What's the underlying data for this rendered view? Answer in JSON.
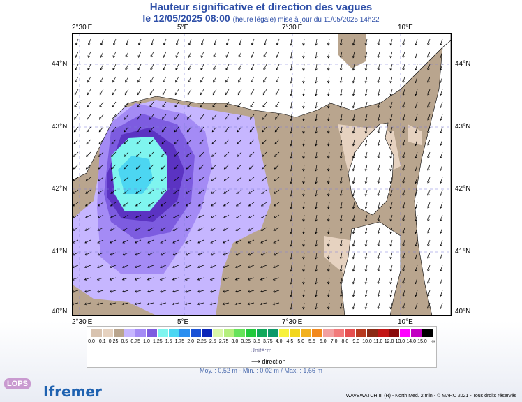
{
  "header": {
    "title": "Hauteur significative et direction des vagues",
    "subtitle_date": "le 12/05/2025 08:00",
    "subtitle_note": "(heure légale) mise à jour du 11/05/2025 14h22"
  },
  "axes": {
    "lon_ticks": [
      "2°30'E",
      "5°E",
      "7°30'E",
      "10°E"
    ],
    "lat_ticks": [
      "44°N",
      "43°N",
      "42°N",
      "41°N",
      "40°N"
    ]
  },
  "colors": {
    "land": "#ffffff",
    "low": "#b9a58e",
    "mid": "#e6d2c0",
    "lav1": "#c6b6ff",
    "lav2": "#a48bf5",
    "violet": "#7d5ce0",
    "purple": "#5b33c2",
    "cyan": "#7ff5ef",
    "cyan2": "#4cd6f2"
  },
  "legend": {
    "labels": [
      "0,0",
      "0,1",
      "0,25",
      "0,5",
      "0,75",
      "1,0",
      "1,25",
      "1,5",
      "1,75",
      "2,0",
      "2,25",
      "2,5",
      "2,75",
      "3,0",
      "3,25",
      "3,5",
      "3,75",
      "4,0",
      "4,5",
      "5,0",
      "5,5",
      "6,0",
      "7,0",
      "8,0",
      "9,0",
      "10,0",
      "11,0",
      "12,0",
      "13,0",
      "14,0",
      "15,0",
      "∞"
    ],
    "colors": [
      "#d8c3b0",
      "#e6d2c0",
      "#b9a58e",
      "#c6b6ff",
      "#a48bf5",
      "#7d5ce0",
      "#7ff5ef",
      "#4cd6f2",
      "#2a8ef0",
      "#1a52d6",
      "#0a26b8",
      "#d9f7a8",
      "#b4ef7d",
      "#66e35a",
      "#22c93c",
      "#0fa85a",
      "#0d9a6a",
      "#f7f23c",
      "#f2d61e",
      "#f2b01e",
      "#f28a1e",
      "#f2a0a0",
      "#f27a7a",
      "#e65050",
      "#b83a1e",
      "#8a2a14",
      "#c21414",
      "#8a0a0a",
      "#ff00ff",
      "#c200c2",
      "#000000"
    ],
    "unit": "Unité:m",
    "direction": "direction"
  },
  "stats": "Moy. : 0,52 m   -   Min. : 0,02 m / Max. : 1,66 m",
  "footer": {
    "copyright": "WAVEWATCH III (R) - North Med. 2 min - © MARC 2021 - Tous droits réservés",
    "logo_lops": "LOPS",
    "logo_ifremer": "Ifremer"
  }
}
